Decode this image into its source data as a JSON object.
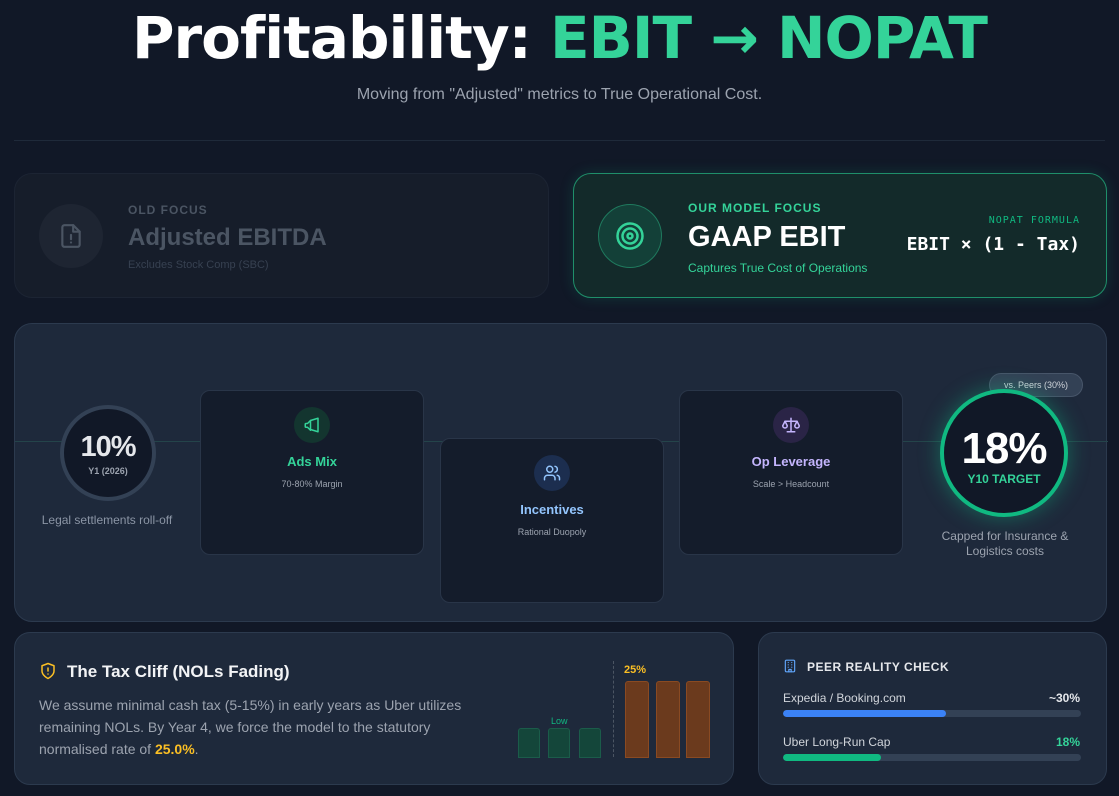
{
  "header": {
    "title_main": "Profitability: ",
    "title_accent": "EBIT → NOPAT",
    "subtitle": "Moving from \"Adjusted\" metrics to True Operational Cost."
  },
  "old_focus": {
    "label": "OLD FOCUS",
    "title": "Adjusted EBITDA",
    "subtitle": "Excludes Stock Comp (SBC)",
    "icon": "file-alert-icon"
  },
  "model_focus": {
    "label": "OUR MODEL FOCUS",
    "title": "GAAP EBIT",
    "subtitle": "Captures True Cost of Operations",
    "formula_label": "NOPAT FORMULA",
    "formula": "EBIT × (1 - Tax)",
    "icon": "target-icon"
  },
  "journey": {
    "start": {
      "value": "10%",
      "label": "Y1 (2026)",
      "note": "Legal settlements roll-off"
    },
    "drivers": [
      {
        "title": "Ads Mix",
        "subtitle": "70-80% Margin",
        "icon": "megaphone-icon",
        "color": "#34d399"
      },
      {
        "title": "Incentives",
        "subtitle": "Rational Duopoly",
        "icon": "users-icon",
        "color": "#93c5fd"
      },
      {
        "title": "Op Leverage",
        "subtitle": "Scale > Headcount",
        "icon": "scale-icon",
        "color": "#c4b5fd"
      }
    ],
    "peer_pill": "vs. Peers (30%)",
    "target": {
      "value": "18%",
      "label": "Y10 TARGET",
      "note": "Capped for Insurance & Logistics costs"
    }
  },
  "tax_cliff": {
    "title": "The Tax Cliff (NOLs Fading)",
    "body_prefix": "We assume minimal cash tax (5-15%) in early years as Uber utilizes remaining NOLs. By Year 4, we force the model to the statutory normalised rate of ",
    "body_highlight": "25.0%",
    "body_suffix": ".",
    "low_label": "Low",
    "high_label": "25%",
    "icon": "shield-alert-icon"
  },
  "peer_check": {
    "title": "PEER REALITY CHECK",
    "icon": "building-icon",
    "rows": [
      {
        "label": "Expedia / Booking.com",
        "value": "~30%",
        "fraction": 0.3,
        "color": "#3b82f6",
        "value_color": "#e5e7eb"
      },
      {
        "label": "Uber Long-Run Cap",
        "value": "18%",
        "fraction": 0.18,
        "color": "#10b981",
        "value_color": "#34d399"
      }
    ]
  }
}
